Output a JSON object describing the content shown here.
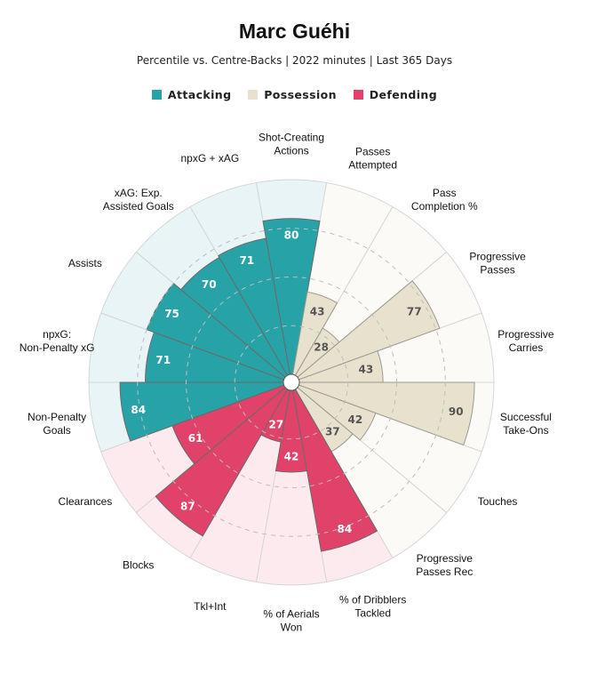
{
  "chart_data": {
    "type": "radar",
    "title": "Marc Guéhi",
    "subtitle": "Percentile vs. Centre-Backs | 2022 minutes | Last 365 Days",
    "range": [
      0,
      100
    ],
    "legend": [
      {
        "name": "Attacking",
        "color": "#27a3a8"
      },
      {
        "name": "Possession",
        "color": "#e8e1ce"
      },
      {
        "name": "Defending",
        "color": "#e0426a"
      }
    ],
    "colors": {
      "Attacking": {
        "fill": "#27a3a8",
        "bg": "#e8f4f5",
        "text": "#ffffff"
      },
      "Possession": {
        "fill": "#e8e1ce",
        "bg": "#fbfaf7",
        "text": "#555555"
      },
      "Defending": {
        "fill": "#e0426a",
        "bg": "#fdeaef",
        "text": "#ffffff"
      }
    },
    "stats": [
      {
        "label": "Shot-Creating Actions",
        "value": 80,
        "group": "Attacking"
      },
      {
        "label": "Passes Attempted",
        "value": 43,
        "group": "Possession"
      },
      {
        "label": "Pass Completion %",
        "value": 28,
        "group": "Possession"
      },
      {
        "label": "Progressive Passes",
        "value": 77,
        "group": "Possession"
      },
      {
        "label": "Progressive Carries",
        "value": 43,
        "group": "Possession"
      },
      {
        "label": "Successful Take-Ons",
        "value": 90,
        "group": "Possession"
      },
      {
        "label": "Touches",
        "value": 42,
        "group": "Possession"
      },
      {
        "label": "Progressive Passes Rec",
        "value": 37,
        "group": "Possession"
      },
      {
        "label": "% of Dribblers Tackled",
        "value": 84,
        "group": "Defending"
      },
      {
        "label": "% of Aerials Won",
        "value": 42,
        "group": "Defending"
      },
      {
        "label": "Tkl+Int",
        "value": 27,
        "group": "Defending"
      },
      {
        "label": "Blocks",
        "value": 87,
        "group": "Defending"
      },
      {
        "label": "Clearances",
        "value": 61,
        "group": "Defending"
      },
      {
        "label": "Non-Penalty Goals",
        "value": 84,
        "group": "Attacking"
      },
      {
        "label": "npxG: Non-Penalty xG",
        "value": 71,
        "group": "Attacking"
      },
      {
        "label": "Assists",
        "value": 75,
        "group": "Attacking"
      },
      {
        "label": "xAG: Exp. Assisted Goals",
        "value": 70,
        "group": "Attacking"
      },
      {
        "label": "npxG + xAG",
        "value": 71,
        "group": "Attacking"
      }
    ]
  }
}
